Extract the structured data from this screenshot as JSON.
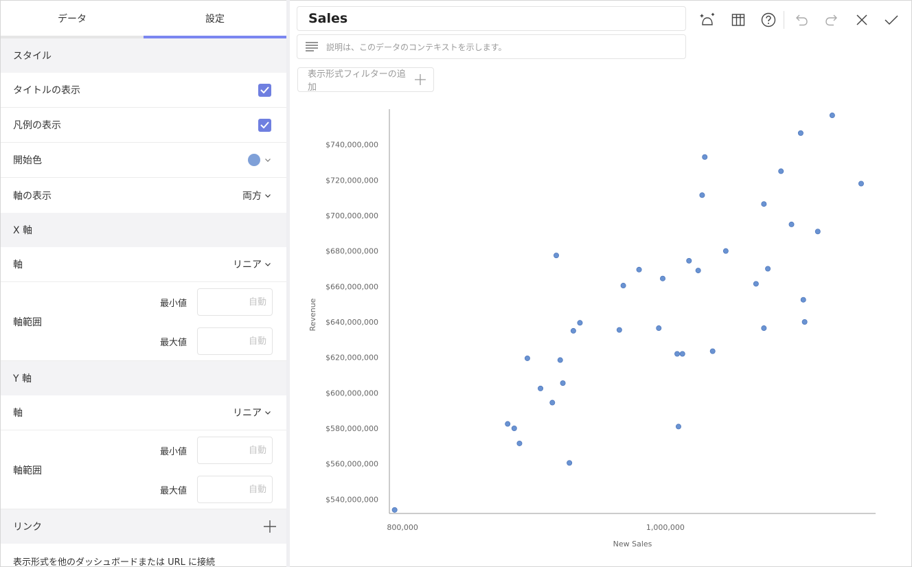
{
  "tabs": [
    {
      "label": "データ"
    },
    {
      "label": "設定"
    }
  ],
  "style_section": {
    "title": "スタイル",
    "show_title_label": "タイトルの表示",
    "show_legend_label": "凡例の表示",
    "start_color_label": "開始色",
    "start_color": "#7fa0d8",
    "axis_display_label": "軸の表示",
    "axis_display_value": "両方"
  },
  "x_axis_section": {
    "title": "X 軸",
    "axis_label": "軸",
    "axis_value": "リニア",
    "range_label": "軸範囲",
    "min_label": "最小値",
    "max_label": "最大値",
    "auto_placeholder": "自動"
  },
  "y_axis_section": {
    "title": "Y 軸",
    "axis_label": "軸",
    "axis_value": "リニア",
    "range_label": "軸範囲",
    "min_label": "最小値",
    "max_label": "最大値",
    "auto_placeholder": "自動"
  },
  "link_section": {
    "title": "リンク",
    "description": "表示形式を他のダッシュボードまたは URL に接続"
  },
  "header": {
    "title": "Sales",
    "description_placeholder": "説明は、このデータのコンテキストを示します。",
    "filter_button_label": "表示形式フィルターの追加"
  },
  "toolbar_icons": [
    "visualization-icon",
    "table-icon",
    "help-icon",
    "undo-icon",
    "redo-icon",
    "close-icon",
    "check-icon"
  ],
  "accent_color": "#7b86f0",
  "chart_data": {
    "type": "scatter",
    "xlabel": "New Sales",
    "ylabel": "Revenue",
    "xlim": [
      790000,
      1160000
    ],
    "ylim": [
      532000000,
      760000000
    ],
    "x_ticks": [
      800000,
      1000000
    ],
    "x_tick_labels": [
      "800,000",
      "1,000,000"
    ],
    "y_ticks": [
      540000000,
      560000000,
      580000000,
      600000000,
      620000000,
      640000000,
      660000000,
      680000000,
      700000000,
      720000000,
      740000000
    ],
    "y_tick_labels": [
      "$540,000,000",
      "$560,000,000",
      "$580,000,000",
      "$600,000,000",
      "$620,000,000",
      "$640,000,000",
      "$660,000,000",
      "$680,000,000",
      "$700,000,000",
      "$720,000,000",
      "$740,000,000"
    ],
    "point_color": "#6a93d2",
    "grid": false,
    "points": [
      {
        "x": 794000,
        "y": 534000000
      },
      {
        "x": 880000,
        "y": 582500000
      },
      {
        "x": 885000,
        "y": 580000000
      },
      {
        "x": 889000,
        "y": 571500000
      },
      {
        "x": 895000,
        "y": 619500000
      },
      {
        "x": 905000,
        "y": 602500000
      },
      {
        "x": 914000,
        "y": 594500000
      },
      {
        "x": 917000,
        "y": 677500000
      },
      {
        "x": 920000,
        "y": 618500000
      },
      {
        "x": 922000,
        "y": 605500000
      },
      {
        "x": 927000,
        "y": 560500000
      },
      {
        "x": 930000,
        "y": 635000000
      },
      {
        "x": 935000,
        "y": 639500000
      },
      {
        "x": 965000,
        "y": 635500000
      },
      {
        "x": 968000,
        "y": 660500000
      },
      {
        "x": 980000,
        "y": 669500000
      },
      {
        "x": 995000,
        "y": 636500000
      },
      {
        "x": 998000,
        "y": 664500000
      },
      {
        "x": 1009000,
        "y": 622000000
      },
      {
        "x": 1010000,
        "y": 581000000
      },
      {
        "x": 1013000,
        "y": 622000000
      },
      {
        "x": 1018000,
        "y": 674500000
      },
      {
        "x": 1025000,
        "y": 669000000
      },
      {
        "x": 1028000,
        "y": 711500000
      },
      {
        "x": 1030000,
        "y": 733000000
      },
      {
        "x": 1036000,
        "y": 623500000
      },
      {
        "x": 1046000,
        "y": 680000000
      },
      {
        "x": 1069000,
        "y": 661500000
      },
      {
        "x": 1075000,
        "y": 706500000
      },
      {
        "x": 1075000,
        "y": 636500000
      },
      {
        "x": 1078000,
        "y": 670000000
      },
      {
        "x": 1088000,
        "y": 725000000
      },
      {
        "x": 1096000,
        "y": 695000000
      },
      {
        "x": 1103000,
        "y": 746500000
      },
      {
        "x": 1105000,
        "y": 652500000
      },
      {
        "x": 1106000,
        "y": 640000000
      },
      {
        "x": 1116000,
        "y": 691000000
      },
      {
        "x": 1127000,
        "y": 756500000
      },
      {
        "x": 1149000,
        "y": 718000000
      }
    ]
  }
}
